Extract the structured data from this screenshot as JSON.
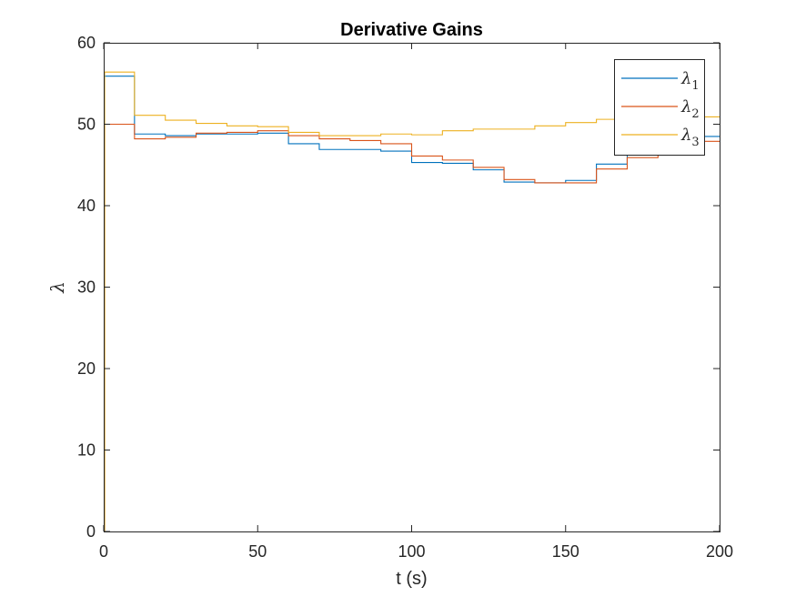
{
  "chart_data": {
    "type": "line",
    "title": "Derivative Gains",
    "xlabel": "t (s)",
    "ylabel": "λ",
    "xlim": [
      0,
      200
    ],
    "ylim": [
      0,
      60
    ],
    "xticks": [
      0,
      50,
      100,
      150,
      200
    ],
    "yticks": [
      0,
      10,
      20,
      30,
      40,
      50,
      60
    ],
    "grid": false,
    "legend_position": "top-right",
    "step": true,
    "series": [
      {
        "name": "λ1",
        "symbol": "λ",
        "subscript": "1",
        "color": "#0072BD",
        "x": [
          0,
          0.3,
          10,
          20,
          30,
          40,
          50,
          60,
          70,
          80,
          90,
          100,
          110,
          120,
          130,
          140,
          150,
          160,
          170,
          180,
          190,
          200
        ],
        "y": [
          0,
          55.9,
          48.8,
          48.6,
          48.8,
          48.8,
          48.9,
          47.6,
          46.9,
          46.9,
          46.7,
          45.3,
          45.2,
          44.4,
          42.9,
          42.8,
          43.1,
          45.1,
          46.6,
          47.5,
          48.5,
          48.5
        ]
      },
      {
        "name": "λ2",
        "symbol": "λ",
        "subscript": "2",
        "color": "#D95319",
        "x": [
          0,
          0.3,
          10,
          20,
          30,
          40,
          50,
          60,
          70,
          80,
          90,
          100,
          110,
          120,
          130,
          140,
          150,
          160,
          170,
          180,
          190,
          200
        ],
        "y": [
          0,
          50.0,
          48.2,
          48.4,
          48.9,
          49.0,
          49.2,
          48.6,
          48.2,
          48.0,
          47.6,
          46.1,
          45.6,
          44.7,
          43.2,
          42.8,
          42.8,
          44.5,
          45.9,
          46.8,
          47.9,
          47.9
        ]
      },
      {
        "name": "λ3",
        "symbol": "λ",
        "subscript": "3",
        "color": "#EDB120",
        "x": [
          0,
          0.3,
          10,
          20,
          30,
          40,
          50,
          60,
          70,
          80,
          90,
          100,
          110,
          120,
          130,
          140,
          150,
          160,
          170,
          180,
          190,
          200
        ],
        "y": [
          0,
          56.4,
          51.1,
          50.5,
          50.1,
          49.8,
          49.7,
          49.0,
          48.6,
          48.6,
          48.8,
          48.7,
          49.2,
          49.4,
          49.4,
          49.8,
          50.2,
          50.6,
          50.7,
          50.7,
          50.9,
          50.9
        ]
      }
    ]
  }
}
